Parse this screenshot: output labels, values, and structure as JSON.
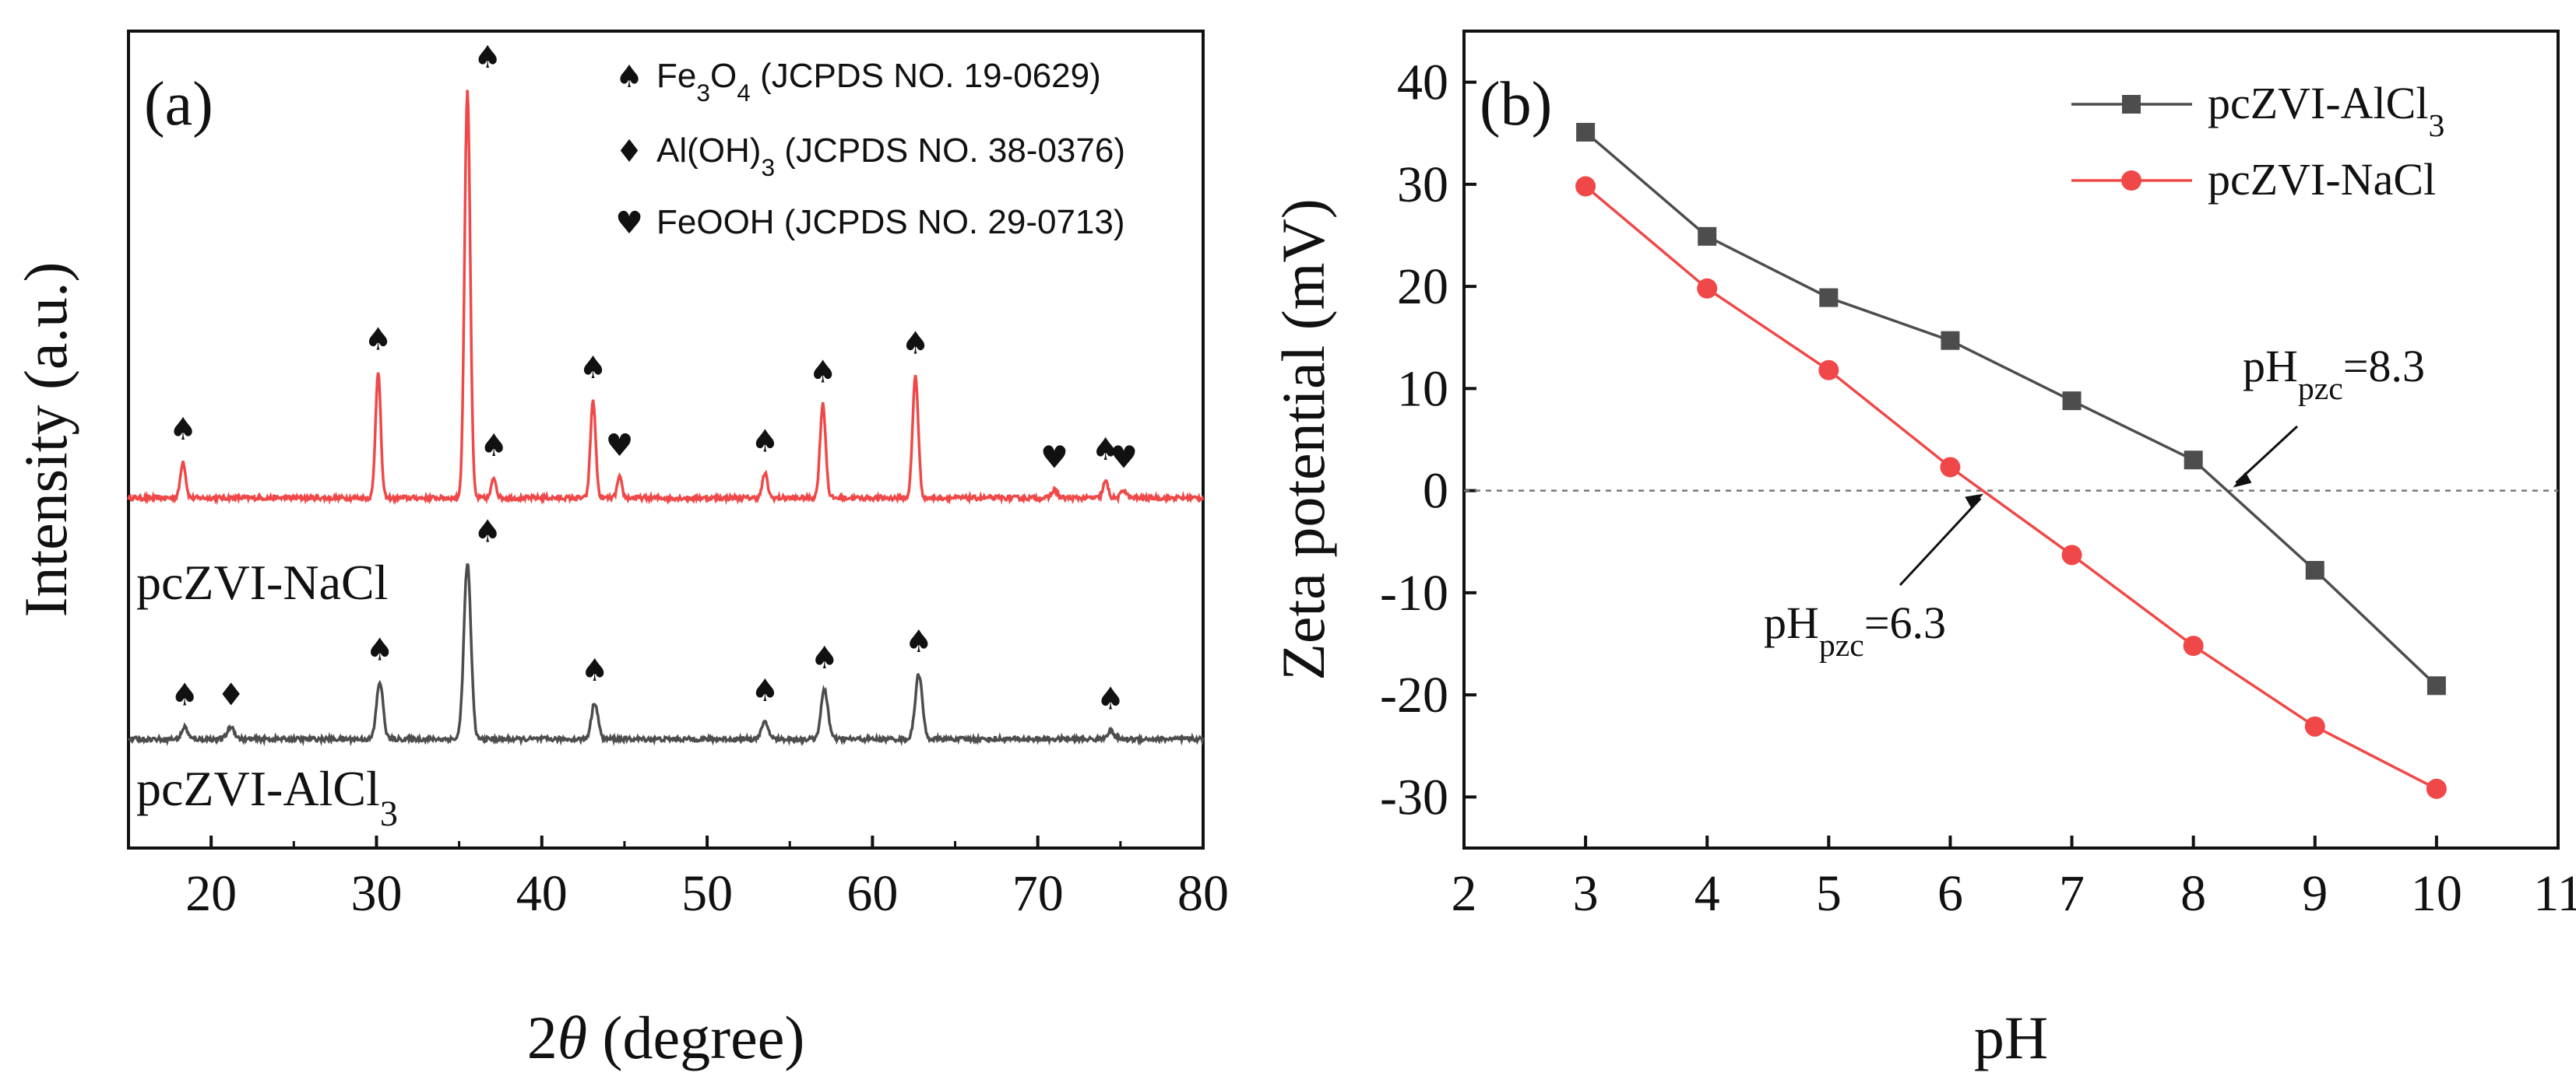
{
  "chart_data": [
    {
      "panel": "(a)",
      "type": "line",
      "title": "",
      "xlabel_prefix": "2",
      "xlabel_theta": "θ",
      "xlabel_suffix": " (degree)",
      "ylabel": "Intensity (a.u.)",
      "xlim": [
        15,
        80
      ],
      "xticks": [
        20,
        30,
        40,
        50,
        60,
        70,
        80
      ],
      "grid": false,
      "legend": [
        {
          "symbol": "♠",
          "compound_parts": [
            [
              "Fe",
              ""
            ],
            [
              "3",
              "sub"
            ],
            [
              "O",
              ""
            ],
            [
              "4",
              "sub"
            ]
          ],
          "ref": " (JCPDS NO. 19-0629)"
        },
        {
          "symbol": "♦",
          "compound_parts": [
            [
              "Al(OH)",
              ""
            ],
            [
              "3",
              "sub"
            ]
          ],
          "ref": " (JCPDS NO. 38-0376)"
        },
        {
          "symbol": "♥",
          "compound_parts": [
            [
              "FeOOH",
              ""
            ]
          ],
          "ref": " (JCPDS NO. 29-0713)"
        }
      ],
      "series": [
        {
          "name": "pcZVI-NaCl",
          "label_parts": [
            [
              "pcZVI-NaCl",
              ""
            ]
          ],
          "color": "#f04848",
          "baseline": 0,
          "peaks": [
            {
              "x": 18.3,
              "h": 0.09,
              "w": 0.22,
              "mark": "♠"
            },
            {
              "x": 30.1,
              "h": 0.31,
              "w": 0.22,
              "mark": "♠"
            },
            {
              "x": 35.5,
              "h": 1.0,
              "w": 0.24,
              "mark": "♠"
            },
            {
              "x": 37.1,
              "h": 0.05,
              "w": 0.2,
              "mark": "♠"
            },
            {
              "x": 43.1,
              "h": 0.24,
              "w": 0.22,
              "mark": "♠"
            },
            {
              "x": 44.7,
              "h": 0.05,
              "w": 0.2,
              "mark": "♥"
            },
            {
              "x": 53.5,
              "h": 0.06,
              "w": 0.22,
              "mark": "♠"
            },
            {
              "x": 57.0,
              "h": 0.23,
              "w": 0.24,
              "mark": "♠"
            },
            {
              "x": 62.6,
              "h": 0.3,
              "w": 0.24,
              "mark": "♠"
            },
            {
              "x": 71.0,
              "h": 0.02,
              "w": 0.22,
              "mark": "♥"
            },
            {
              "x": 74.1,
              "h": 0.04,
              "w": 0.22,
              "mark": "♠"
            },
            {
              "x": 75.2,
              "h": 0.02,
              "w": 0.22,
              "mark": "♥"
            }
          ]
        },
        {
          "name": "pcZVI-AlCl3",
          "label_parts": [
            [
              "pcZVI-AlCl",
              ""
            ],
            [
              "3",
              "sub"
            ]
          ],
          "color": "#4d4d4d",
          "baseline": -0.6,
          "peaks": [
            {
              "x": 18.4,
              "h": 0.03,
              "w": 0.25,
              "mark": "♠"
            },
            {
              "x": 21.2,
              "h": 0.03,
              "w": 0.3,
              "mark": "♦"
            },
            {
              "x": 30.2,
              "h": 0.14,
              "w": 0.28,
              "mark": "♠"
            },
            {
              "x": 35.5,
              "h": 0.43,
              "w": 0.3,
              "mark": "♠"
            },
            {
              "x": 43.2,
              "h": 0.09,
              "w": 0.28,
              "mark": "♠"
            },
            {
              "x": 53.5,
              "h": 0.04,
              "w": 0.3,
              "mark": "♠"
            },
            {
              "x": 57.1,
              "h": 0.12,
              "w": 0.3,
              "mark": "♠"
            },
            {
              "x": 62.8,
              "h": 0.16,
              "w": 0.3,
              "mark": "♠"
            },
            {
              "x": 74.4,
              "h": 0.02,
              "w": 0.3,
              "mark": "♠"
            }
          ]
        }
      ]
    },
    {
      "panel": "(b)",
      "type": "line",
      "title": "",
      "xlabel": "pH",
      "ylabel": "Zeta potential (mV)",
      "xlim": [
        2,
        11
      ],
      "ylim": [
        -35,
        45
      ],
      "xticks": [
        2,
        3,
        4,
        5,
        6,
        7,
        8,
        9,
        10,
        11
      ],
      "yticks": [
        -30,
        -20,
        -10,
        0,
        10,
        20,
        30,
        40
      ],
      "grid": false,
      "legend_position": "top-right",
      "series": [
        {
          "name": "pcZVI-AlCl3",
          "label_parts": [
            [
              "pcZVI-AlCl",
              ""
            ],
            [
              "3",
              "sub"
            ]
          ],
          "marker": "square",
          "color": "#4d4d4d",
          "x": [
            3,
            4,
            5,
            6,
            7,
            8,
            9,
            10
          ],
          "y": [
            35.1,
            24.9,
            18.9,
            14.7,
            8.8,
            3.0,
            -7.8,
            -19.1
          ]
        },
        {
          "name": "pcZVI-NaCl",
          "label_parts": [
            [
              "pcZVI-NaCl",
              ""
            ]
          ],
          "marker": "circle",
          "color": "#f04848",
          "x": [
            3,
            4,
            5,
            6,
            7,
            8,
            9,
            10
          ],
          "y": [
            29.8,
            19.8,
            11.8,
            2.3,
            -6.3,
            -15.2,
            -23.1,
            -29.2
          ]
        }
      ],
      "reference_line": {
        "y": 0,
        "style": "dashed"
      },
      "annotations": [
        {
          "parts": [
            [
              "pH",
              ""
            ],
            [
              "pzc",
              "sub"
            ],
            [
              "=8.3",
              ""
            ]
          ],
          "x": 8.3,
          "y": 0
        },
        {
          "parts": [
            [
              "pH",
              ""
            ],
            [
              "pzc",
              "sub"
            ],
            [
              "=6.3",
              ""
            ]
          ],
          "x": 6.3,
          "y": 0
        }
      ]
    }
  ]
}
